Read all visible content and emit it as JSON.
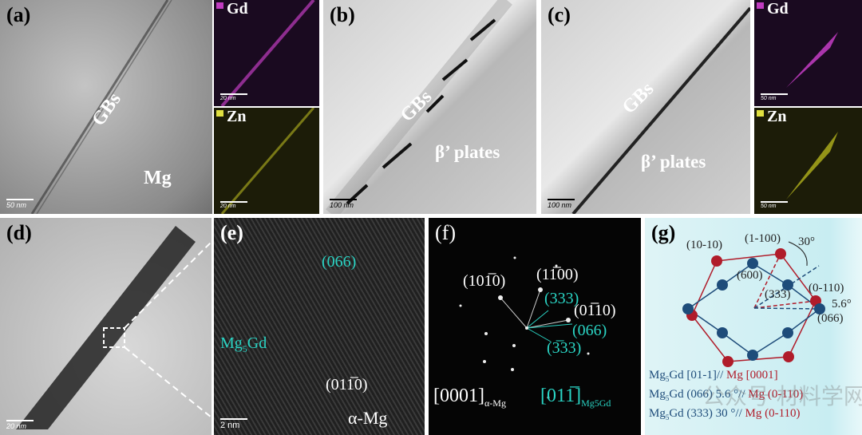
{
  "panels": {
    "a": {
      "label": "(a)",
      "gbs": "GBs",
      "mg": "Mg",
      "scale": "50 nm",
      "gd_map": {
        "element": "Gd",
        "scale": "20 nm",
        "color": "#c03cc0"
      },
      "zn_map": {
        "element": "Zn",
        "scale": "20 nm",
        "color": "#c8c820"
      }
    },
    "b": {
      "label": "(b)",
      "gbs": "GBs",
      "plates": "β’ plates",
      "scale": "100 nm"
    },
    "c": {
      "label": "(c)",
      "gbs": "GBs",
      "plates": "β’ plates",
      "scale": "100 nm",
      "gd_map": {
        "element": "Gd",
        "scale": "50 nm",
        "color": "#c03cc0"
      },
      "zn_map": {
        "element": "Zn",
        "scale": "50 nm",
        "color": "#c8c820"
      }
    },
    "d": {
      "label": "(d)",
      "scale": "20 nm"
    },
    "e": {
      "label": "(e)",
      "plane1": "(066)",
      "phase1": "Mg",
      "phase1_sub": "5",
      "phase1_rest": "Gd",
      "plane2": "(011̅0)",
      "phase2": "α-Mg",
      "scale": "2 nm",
      "accent": "#2ad4c4"
    },
    "f": {
      "label": "(f)",
      "white_spots": [
        "(101̅0)",
        "(11̅00)",
        "(01̅10)"
      ],
      "cyan_spots": [
        "(333)",
        "(066)",
        "(3̅33)"
      ],
      "zone1": "[0001]",
      "zone1_sub": "α-Mg",
      "zone2": "[011̅]",
      "zone2_sub": "Mg5Gd"
    },
    "g": {
      "label": "(g)",
      "red_labels": [
        "(10-10)",
        "(1-100)",
        "(0-110)"
      ],
      "blue_labels": [
        "(600)",
        "(333)",
        "(066)"
      ],
      "angle1": "30°",
      "angle2": "5.6°",
      "relations": [
        {
          "a": "Mg",
          "sub": "5",
          "b": "Gd [01-1]//",
          "c": "Mg [0001]"
        },
        {
          "a": "Mg",
          "sub": "5",
          "b": "Gd (066) 5.6 °//",
          "c": "Mg (0-110)"
        },
        {
          "a": "Mg",
          "sub": "5",
          "b": "Gd (333) 30 °//",
          "c": "Mg (0-110)"
        }
      ],
      "red": "#b01c2a",
      "blue": "#1e4c7a"
    }
  },
  "watermark": "公众号·材料学网"
}
